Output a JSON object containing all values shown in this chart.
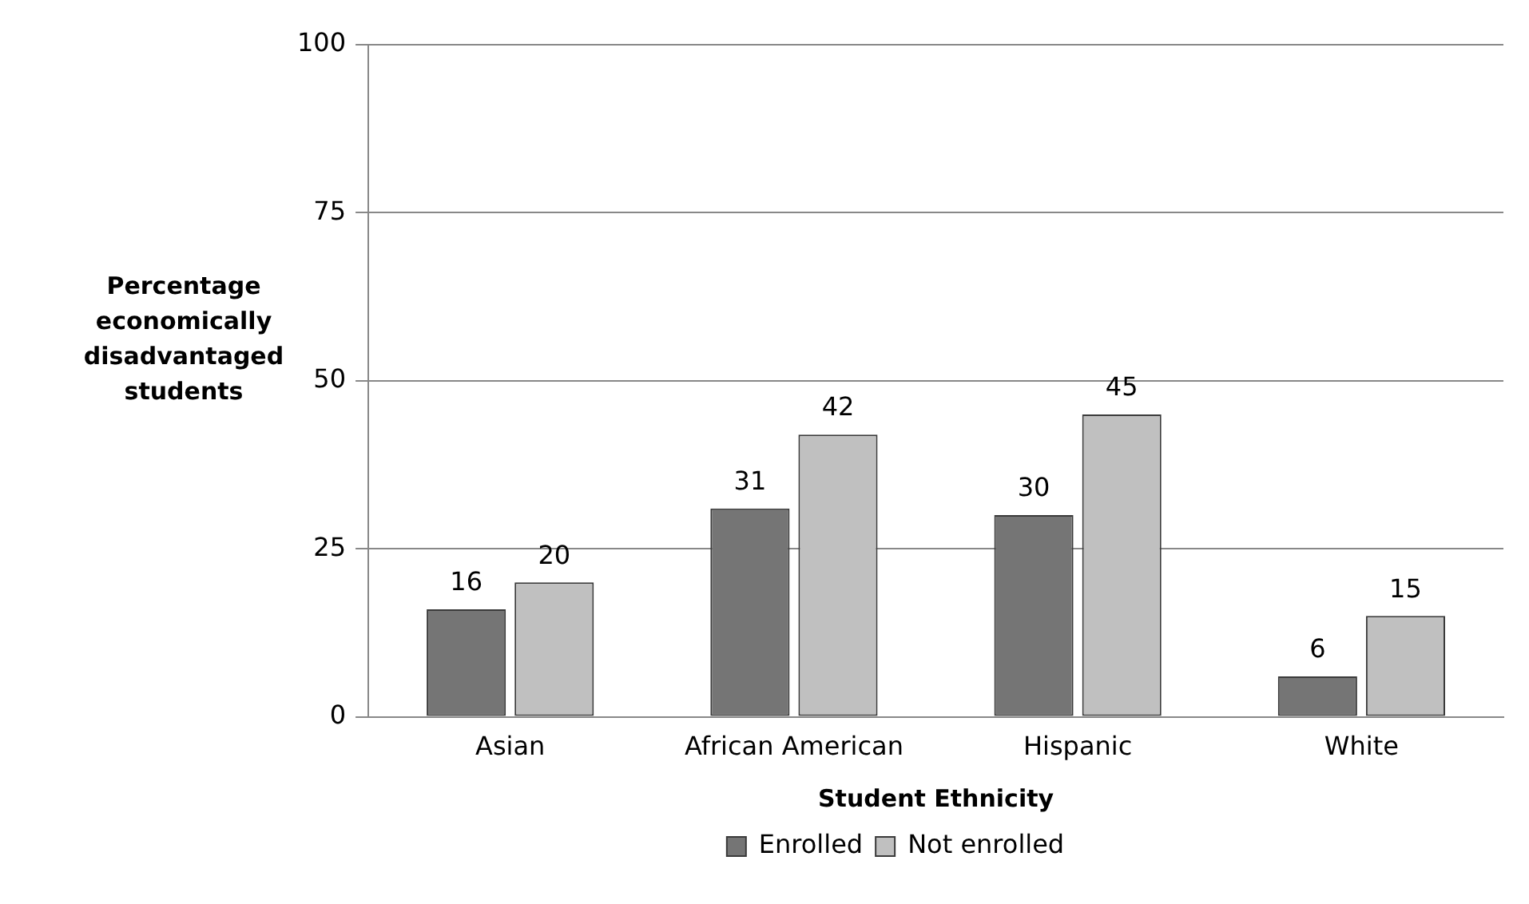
{
  "chart_data": {
    "type": "bar",
    "xlabel": "Student Ethnicity",
    "ylabel": "Percentage economically disadvantaged students",
    "categories": [
      "Asian",
      "African American",
      "Hispanic",
      "White"
    ],
    "series": [
      {
        "name": "Enrolled",
        "color": "#757575",
        "values": [
          16,
          31,
          30,
          6
        ]
      },
      {
        "name": "Not enrolled",
        "color": "#c0c0c0",
        "values": [
          20,
          42,
          45,
          15
        ]
      }
    ],
    "ylim": [
      0,
      100
    ],
    "yticks": [
      0,
      25,
      50,
      75,
      100
    ],
    "grid": "y",
    "legend": "bottom",
    "data_labels": true
  }
}
